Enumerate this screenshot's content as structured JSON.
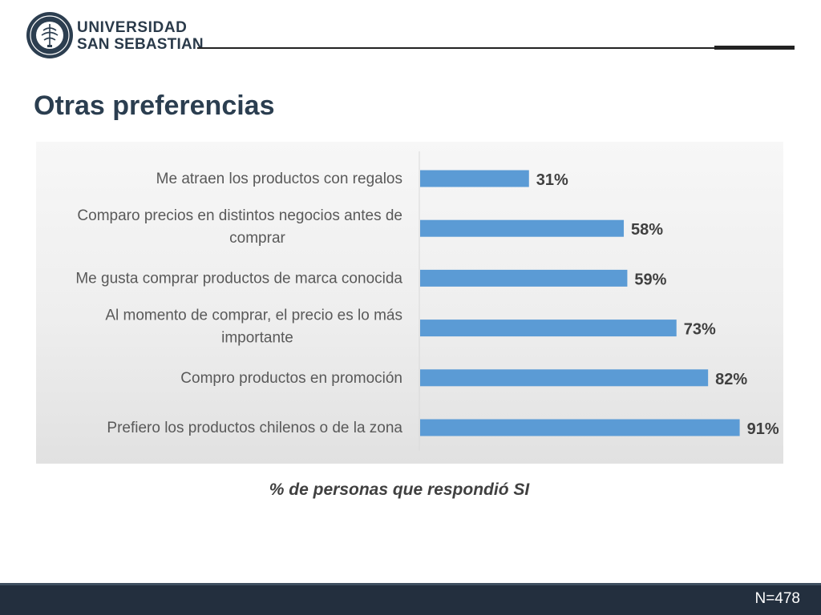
{
  "header": {
    "logo_line1": "UNIVERSIDAD",
    "logo_line2": "SAN SEBASTIAN"
  },
  "page_title": "Otras preferencias",
  "chart_data": {
    "type": "bar",
    "orientation": "horizontal",
    "categories": [
      "Me atraen los productos con regalos",
      "Comparo precios en distintos negocios antes de comprar",
      "Me gusta comprar productos de marca conocida",
      "Al momento de comprar, el precio es lo más importante",
      "Compro productos en promoción",
      "Prefiero los productos chilenos o de la zona"
    ],
    "category_lines": [
      [
        "Me atraen los productos con regalos"
      ],
      [
        "Comparo precios en distintos negocios antes de",
        "comprar"
      ],
      [
        "Me gusta comprar productos de marca conocida"
      ],
      [
        "Al momento de comprar, el precio es lo más",
        "importante"
      ],
      [
        "Compro productos en promoción"
      ],
      [
        "Prefiero los productos chilenos o de la zona"
      ]
    ],
    "values": [
      31,
      58,
      59,
      73,
      82,
      91
    ],
    "value_labels": [
      "31%",
      "58%",
      "59%",
      "73%",
      "82%",
      "91%"
    ],
    "xlabel": "% de personas que respondió SI",
    "xlim": [
      0,
      100
    ],
    "grid": false,
    "bar_color": "#5b9bd5"
  },
  "footer": {
    "sample_size": "N=478"
  }
}
